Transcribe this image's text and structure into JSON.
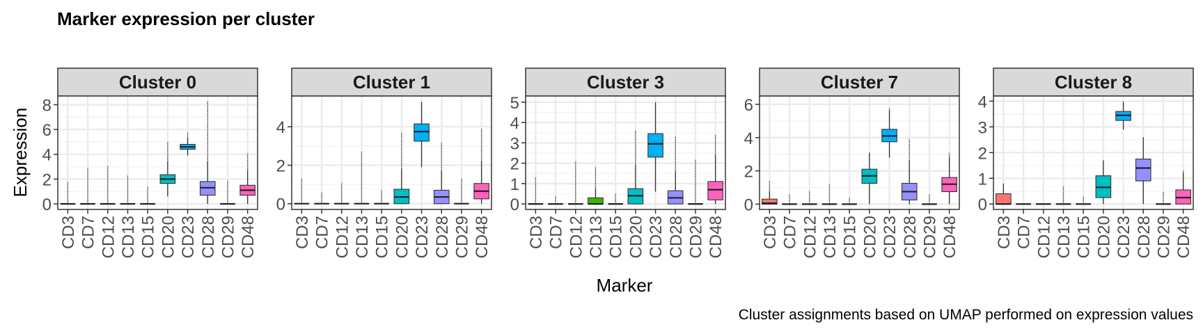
{
  "chart_data": {
    "type": "box",
    "title": "Marker expression per cluster",
    "xlabel": "Marker",
    "ylabel": "Expression",
    "caption": "Cluster assignments based on UMAP performed on expression values",
    "categories": [
      "CD3",
      "CD7",
      "CD12",
      "CD13",
      "CD15",
      "CD20",
      "CD23",
      "CD28",
      "CD29",
      "CD48"
    ],
    "colors": {
      "CD3": "#F8766D",
      "CD7": "#D89000",
      "CD12": "#A3A500",
      "CD13": "#39B600",
      "CD15": "#00BF7D",
      "CD20": "#00BFC4",
      "CD23": "#00B0F6",
      "CD28": "#9590FF",
      "CD29": "#E76BF3",
      "CD48": "#FF62BC"
    },
    "grid": true,
    "panels": [
      {
        "title": "Cluster 0",
        "ylim": [
          -0.45,
          8.7
        ],
        "yticks": [
          0,
          2,
          4,
          6,
          8
        ],
        "boxes": [
          {
            "marker": "CD3",
            "q1": 0,
            "median": 0,
            "q3": 0,
            "whisker_low": 0,
            "whisker_high": 0,
            "outlier_max": 1.8
          },
          {
            "marker": "CD7",
            "q1": 0,
            "median": 0,
            "q3": 0,
            "whisker_low": 0,
            "whisker_high": 0,
            "outlier_max": 2.9
          },
          {
            "marker": "CD12",
            "q1": 0,
            "median": 0,
            "q3": 0,
            "whisker_low": 0,
            "whisker_high": 0,
            "outlier_max": 3.1
          },
          {
            "marker": "CD13",
            "q1": 0,
            "median": 0,
            "q3": 0,
            "whisker_low": 0,
            "whisker_high": 0,
            "outlier_max": 2.3
          },
          {
            "marker": "CD15",
            "q1": 0,
            "median": 0,
            "q3": 0,
            "whisker_low": 0,
            "whisker_high": 0,
            "outlier_max": 1.4
          },
          {
            "marker": "CD20",
            "q1": 1.65,
            "median": 2.0,
            "q3": 2.35,
            "whisker_low": 0.6,
            "whisker_high": 3.4,
            "outlier_max": 5.0
          },
          {
            "marker": "CD23",
            "q1": 4.4,
            "median": 4.6,
            "q3": 4.8,
            "whisker_low": 3.9,
            "whisker_high": 5.3,
            "outlier_max": 5.8
          },
          {
            "marker": "CD28",
            "q1": 0.7,
            "median": 1.3,
            "q3": 1.8,
            "whisker_low": 0,
            "whisker_high": 3.4,
            "outlier_max": 8.3
          },
          {
            "marker": "CD29",
            "q1": 0,
            "median": 0,
            "q3": 0,
            "whisker_low": 0,
            "whisker_high": 0,
            "outlier_max": 1.9
          },
          {
            "marker": "CD48",
            "q1": 0.7,
            "median": 1.1,
            "q3": 1.5,
            "whisker_low": 0,
            "whisker_high": 2.7,
            "outlier_max": 4.1
          }
        ]
      },
      {
        "title": "Cluster 1",
        "ylim": [
          -0.3,
          5.6
        ],
        "yticks": [
          0,
          2,
          4
        ],
        "boxes": [
          {
            "marker": "CD3",
            "q1": 0,
            "median": 0,
            "q3": 0,
            "whisker_low": 0,
            "whisker_high": 0,
            "outlier_max": 1.3
          },
          {
            "marker": "CD7",
            "q1": 0,
            "median": 0,
            "q3": 0,
            "whisker_low": 0,
            "whisker_high": 0,
            "outlier_max": 0.6
          },
          {
            "marker": "CD12",
            "q1": 0,
            "median": 0,
            "q3": 0,
            "whisker_low": 0,
            "whisker_high": 0,
            "outlier_max": 1.1
          },
          {
            "marker": "CD13",
            "q1": 0,
            "median": 0,
            "q3": 0,
            "whisker_low": 0,
            "whisker_high": 0,
            "outlier_max": 2.7
          },
          {
            "marker": "CD15",
            "q1": 0,
            "median": 0,
            "q3": 0,
            "whisker_low": 0,
            "whisker_high": 0,
            "outlier_max": 0.7
          },
          {
            "marker": "CD20",
            "q1": 0,
            "median": 0.35,
            "q3": 0.75,
            "whisker_low": 0,
            "whisker_high": 1.8,
            "outlier_max": 3.7
          },
          {
            "marker": "CD23",
            "q1": 3.25,
            "median": 3.75,
            "q3": 4.15,
            "whisker_low": 1.9,
            "whisker_high": 5.3,
            "outlier_max": 5.3
          },
          {
            "marker": "CD28",
            "q1": 0,
            "median": 0.35,
            "q3": 0.7,
            "whisker_low": 0,
            "whisker_high": 1.7,
            "outlier_max": 3.2
          },
          {
            "marker": "CD29",
            "q1": 0,
            "median": 0,
            "q3": 0,
            "whisker_low": 0,
            "whisker_high": 0,
            "outlier_max": 1.3
          },
          {
            "marker": "CD48",
            "q1": 0.25,
            "median": 0.65,
            "q3": 1.05,
            "whisker_low": 0,
            "whisker_high": 2.2,
            "outlier_max": 3.9
          }
        ]
      },
      {
        "title": "Cluster 3",
        "ylim": [
          -0.27,
          5.3
        ],
        "yticks": [
          0,
          1,
          2,
          3,
          4,
          5
        ],
        "boxes": [
          {
            "marker": "CD3",
            "q1": 0,
            "median": 0,
            "q3": 0,
            "whisker_low": 0,
            "whisker_high": 0,
            "outlier_max": 1.3
          },
          {
            "marker": "CD7",
            "q1": 0,
            "median": 0,
            "q3": 0,
            "whisker_low": 0,
            "whisker_high": 0,
            "outlier_max": 0.4
          },
          {
            "marker": "CD12",
            "q1": 0,
            "median": 0,
            "q3": 0,
            "whisker_low": 0,
            "whisker_high": 0,
            "outlier_max": 2.1
          },
          {
            "marker": "CD13",
            "q1": 0,
            "median": 0,
            "q3": 0.3,
            "whisker_low": 0,
            "whisker_high": 0.75,
            "outlier_max": 1.8
          },
          {
            "marker": "CD15",
            "q1": 0,
            "median": 0,
            "q3": 0,
            "whisker_low": 0,
            "whisker_high": 0,
            "outlier_max": 0.5
          },
          {
            "marker": "CD20",
            "q1": 0,
            "median": 0.4,
            "q3": 0.75,
            "whisker_low": 0,
            "whisker_high": 1.9,
            "outlier_max": 3.6
          },
          {
            "marker": "CD23",
            "q1": 2.3,
            "median": 2.95,
            "q3": 3.45,
            "whisker_low": 0.6,
            "whisker_high": 5.0,
            "outlier_max": 5.0
          },
          {
            "marker": "CD28",
            "q1": 0,
            "median": 0.3,
            "q3": 0.65,
            "whisker_low": 0,
            "whisker_high": 1.6,
            "outlier_max": 3.3
          },
          {
            "marker": "CD29",
            "q1": 0,
            "median": 0,
            "q3": 0,
            "whisker_low": 0,
            "whisker_high": 0,
            "outlier_max": 2.2
          },
          {
            "marker": "CD48",
            "q1": 0.2,
            "median": 0.7,
            "q3": 1.1,
            "whisker_low": 0,
            "whisker_high": 2.4,
            "outlier_max": 3.4
          }
        ]
      },
      {
        "title": "Cluster 7",
        "ylim": [
          -0.32,
          6.5
        ],
        "yticks": [
          0,
          2,
          4,
          6
        ],
        "boxes": [
          {
            "marker": "CD3",
            "q1": 0,
            "median": 0.05,
            "q3": 0.3,
            "whisker_low": 0,
            "whisker_high": 0.75,
            "outlier_max": 1.4
          },
          {
            "marker": "CD7",
            "q1": 0,
            "median": 0,
            "q3": 0,
            "whisker_low": 0,
            "whisker_high": 0,
            "outlier_max": 0.6
          },
          {
            "marker": "CD12",
            "q1": 0,
            "median": 0,
            "q3": 0,
            "whisker_low": 0,
            "whisker_high": 0,
            "outlier_max": 0.8
          },
          {
            "marker": "CD13",
            "q1": 0,
            "median": 0,
            "q3": 0,
            "whisker_low": 0,
            "whisker_high": 0,
            "outlier_max": 1.2
          },
          {
            "marker": "CD15",
            "q1": 0,
            "median": 0,
            "q3": 0,
            "whisker_low": 0,
            "whisker_high": 0,
            "outlier_max": 0.4
          },
          {
            "marker": "CD20",
            "q1": 1.25,
            "median": 1.7,
            "q3": 2.1,
            "whisker_low": 0,
            "whisker_high": 3.1,
            "outlier_max": 3.1
          },
          {
            "marker": "CD23",
            "q1": 3.75,
            "median": 4.1,
            "q3": 4.5,
            "whisker_low": 2.8,
            "whisker_high": 5.6,
            "outlier_max": 5.8
          },
          {
            "marker": "CD28",
            "q1": 0.25,
            "median": 0.75,
            "q3": 1.25,
            "whisker_low": 0,
            "whisker_high": 2.6,
            "outlier_max": 3.9
          },
          {
            "marker": "CD29",
            "q1": 0,
            "median": 0,
            "q3": 0,
            "whisker_low": 0,
            "whisker_high": 0,
            "outlier_max": 0.6
          },
          {
            "marker": "CD48",
            "q1": 0.75,
            "median": 1.2,
            "q3": 1.6,
            "whisker_low": 0,
            "whisker_high": 2.8,
            "outlier_max": 3.1
          }
        ]
      },
      {
        "title": "Cluster 8",
        "ylim": [
          -0.21,
          4.2
        ],
        "yticks": [
          0,
          1,
          2,
          3,
          4
        ],
        "boxes": [
          {
            "marker": "CD3",
            "q1": 0,
            "median": 0,
            "q3": 0.4,
            "whisker_low": 0,
            "whisker_high": 0.8,
            "outlier_max": 0.8
          },
          {
            "marker": "CD7",
            "q1": 0,
            "median": 0,
            "q3": 0,
            "whisker_low": 0,
            "whisker_high": 0,
            "outlier_max": 0
          },
          {
            "marker": "CD12",
            "q1": 0,
            "median": 0,
            "q3": 0,
            "whisker_low": 0,
            "whisker_high": 0,
            "outlier_max": 0
          },
          {
            "marker": "CD13",
            "q1": 0,
            "median": 0,
            "q3": 0,
            "whisker_low": 0,
            "whisker_high": 0,
            "outlier_max": 0.7
          },
          {
            "marker": "CD15",
            "q1": 0,
            "median": 0,
            "q3": 0,
            "whisker_low": 0,
            "whisker_high": 0,
            "outlier_max": 0.3
          },
          {
            "marker": "CD20",
            "q1": 0.25,
            "median": 0.65,
            "q3": 1.1,
            "whisker_low": 0,
            "whisker_high": 1.7,
            "outlier_max": 1.7
          },
          {
            "marker": "CD23",
            "q1": 3.25,
            "median": 3.45,
            "q3": 3.6,
            "whisker_low": 2.9,
            "whisker_high": 3.95,
            "outlier_max": 4.0
          },
          {
            "marker": "CD28",
            "q1": 0.9,
            "median": 1.4,
            "q3": 1.75,
            "whisker_low": 0,
            "whisker_high": 2.6,
            "outlier_max": 2.6
          },
          {
            "marker": "CD29",
            "q1": 0,
            "median": 0,
            "q3": 0,
            "whisker_low": 0,
            "whisker_high": 0,
            "outlier_max": 0.5
          },
          {
            "marker": "CD48",
            "q1": 0,
            "median": 0.25,
            "q3": 0.55,
            "whisker_low": 0,
            "whisker_high": 1.2,
            "outlier_max": 1.3
          }
        ]
      }
    ]
  }
}
